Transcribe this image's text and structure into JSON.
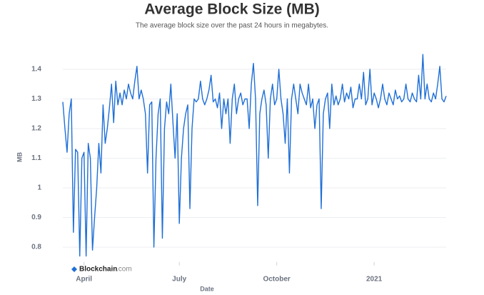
{
  "chart_data": {
    "type": "line",
    "title": "Average Block Size (MB)",
    "subtitle": "The average block size over the past 24 hours in megabytes.",
    "y_label": "MB",
    "x_label": "Date",
    "source": {
      "name": "Blockchain",
      "suffix": ".com"
    },
    "categories": [
      null,
      null,
      null,
      null,
      null,
      null,
      null,
      null,
      null,
      null,
      "April",
      null,
      null,
      null,
      null,
      null,
      null,
      null,
      null,
      null,
      null,
      null,
      null,
      null,
      null,
      null,
      null,
      null,
      null,
      null,
      null,
      null,
      null,
      null,
      null,
      null,
      null,
      null,
      null,
      null,
      null,
      null,
      null,
      null,
      null,
      null,
      null,
      null,
      null,
      null,
      null,
      null,
      null,
      null,
      null,
      "July",
      null,
      null,
      null,
      null,
      null,
      null,
      null,
      null,
      null,
      null,
      null,
      null,
      null,
      null,
      null,
      null,
      null,
      null,
      null,
      null,
      null,
      null,
      null,
      null,
      null,
      null,
      null,
      null,
      null,
      null,
      null,
      null,
      null,
      null,
      null,
      null,
      null,
      null,
      null,
      null,
      null,
      null,
      null,
      null,
      null,
      "October",
      null,
      null,
      null,
      null,
      null,
      null,
      null,
      null,
      null,
      null,
      null,
      null,
      null,
      null,
      null,
      null,
      null,
      null,
      null,
      null,
      null,
      null,
      null,
      null,
      null,
      null,
      null,
      null,
      null,
      null,
      null,
      null,
      null,
      null,
      null,
      null,
      null,
      null,
      null,
      null,
      null,
      null,
      null,
      null,
      null,
      "2021",
      null,
      null,
      null,
      null,
      null,
      null,
      null,
      null,
      null,
      null,
      null,
      null,
      null,
      null,
      null,
      null,
      null,
      null,
      null,
      null,
      null,
      null,
      null,
      null,
      null,
      null,
      null,
      null,
      null,
      null,
      null,
      null,
      null,
      null
    ],
    "series": [
      {
        "name": "Average Block Size",
        "color": "#1f6fd6",
        "values": [
          1.29,
          1.2,
          1.12,
          1.25,
          1.3,
          0.85,
          1.13,
          1.12,
          0.77,
          1.1,
          1.12,
          0.77,
          1.15,
          1.1,
          0.79,
          0.9,
          1.0,
          1.15,
          1.05,
          1.28,
          1.15,
          1.2,
          1.27,
          1.35,
          1.22,
          1.36,
          1.28,
          1.32,
          1.28,
          1.33,
          1.3,
          1.35,
          1.32,
          1.3,
          1.36,
          1.41,
          1.3,
          1.33,
          1.3,
          1.25,
          1.05,
          1.28,
          1.29,
          0.8,
          1.1,
          1.25,
          1.3,
          0.83,
          1.2,
          1.29,
          1.25,
          1.35,
          1.22,
          1.1,
          1.25,
          0.88,
          1.1,
          1.2,
          1.25,
          1.28,
          0.93,
          1.2,
          1.3,
          1.29,
          1.3,
          1.36,
          1.3,
          1.28,
          1.3,
          1.33,
          1.38,
          1.29,
          1.3,
          1.27,
          1.32,
          1.2,
          1.3,
          1.25,
          1.3,
          1.15,
          1.3,
          1.35,
          1.25,
          1.3,
          1.32,
          1.28,
          1.3,
          1.3,
          1.2,
          1.35,
          1.42,
          1.3,
          0.94,
          1.25,
          1.3,
          1.33,
          1.28,
          1.1,
          1.3,
          1.35,
          1.28,
          1.3,
          1.4,
          1.3,
          1.25,
          1.15,
          1.3,
          1.05,
          1.3,
          1.35,
          1.3,
          1.25,
          1.35,
          1.32,
          1.3,
          1.28,
          1.35,
          1.27,
          1.3,
          1.2,
          1.28,
          1.3,
          0.93,
          1.25,
          1.3,
          1.32,
          1.2,
          1.35,
          1.28,
          1.31,
          1.28,
          1.3,
          1.35,
          1.29,
          1.32,
          1.3,
          1.34,
          1.27,
          1.3,
          1.3,
          1.35,
          1.3,
          1.39,
          1.28,
          1.3,
          1.4,
          1.28,
          1.32,
          1.3,
          1.27,
          1.3,
          1.35,
          1.3,
          1.28,
          1.32,
          1.3,
          1.28,
          1.33,
          1.3,
          1.31,
          1.29,
          1.3,
          1.35,
          1.3,
          1.29,
          1.32,
          1.3,
          1.29,
          1.38,
          1.3,
          1.45,
          1.3,
          1.35,
          1.3,
          1.29,
          1.32,
          1.3,
          1.35,
          1.41,
          1.3,
          1.29,
          1.31
        ]
      }
    ],
    "ylim": [
      0.75,
      1.45
    ],
    "yticks": [
      0.8,
      0.9,
      1,
      1.1,
      1.2,
      1.3,
      1.4
    ],
    "grid": true
  }
}
